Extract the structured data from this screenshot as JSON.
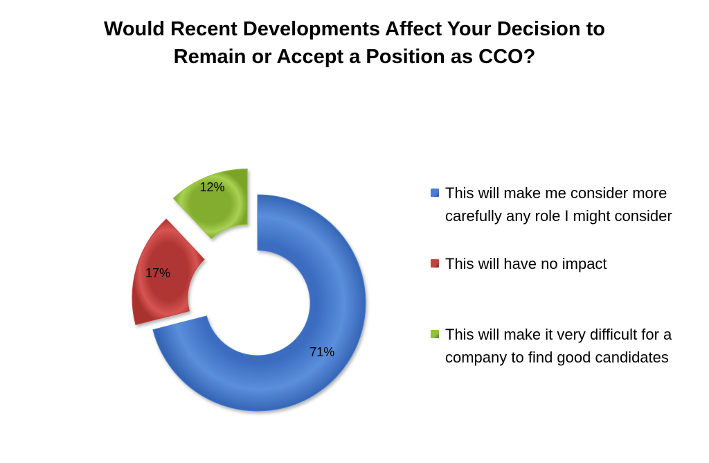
{
  "title_line1": "Would Recent Developments Affect Your Decision to",
  "title_line2": "Remain or Accept a Position as CCO?",
  "chart_data": {
    "type": "pie",
    "subtype": "exploded doughnut",
    "title": "Would Recent Developments Affect Your Decision to Remain or Accept a Position as CCO?",
    "legend_position": "right",
    "slices": [
      {
        "label": "This will make me consider more carefully any role I might consider",
        "value": 71,
        "data_label": "71%",
        "color": "#4a7ed0"
      },
      {
        "label": "This will have no impact",
        "value": 17,
        "data_label": "17%",
        "color": "#c44240"
      },
      {
        "label": "This will make it very difficult for a company to find good candidates",
        "value": 12,
        "data_label": "12%",
        "color": "#94c03c"
      }
    ]
  }
}
